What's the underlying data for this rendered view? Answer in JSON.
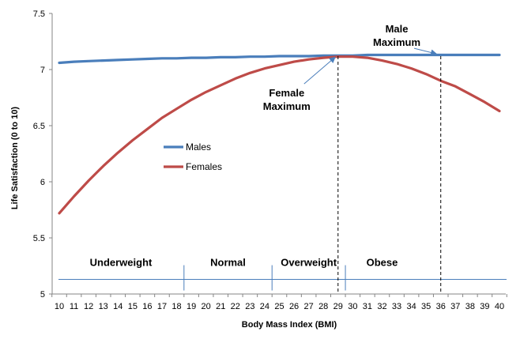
{
  "chart_data": {
    "type": "line",
    "xlabel": "Body Mass Index (BMI)",
    "ylabel": "Life Satisfaction  (0 to 10)",
    "x": [
      10,
      11,
      12,
      13,
      14,
      15,
      16,
      17,
      18,
      19,
      20,
      21,
      22,
      23,
      24,
      25,
      26,
      27,
      28,
      29,
      30,
      31,
      32,
      33,
      34,
      35,
      36,
      37,
      38,
      39,
      40
    ],
    "xlim": [
      10,
      40
    ],
    "ylim": [
      5,
      7.5
    ],
    "y_ticks": [
      5,
      5.5,
      6,
      6.5,
      7,
      7.5
    ],
    "grid": false,
    "legend_position": "middle-left",
    "series": [
      {
        "name": "Males",
        "color": "#4a7ebb",
        "values": [
          7.06,
          7.07,
          7.075,
          7.08,
          7.085,
          7.09,
          7.095,
          7.1,
          7.1,
          7.105,
          7.105,
          7.11,
          7.11,
          7.115,
          7.115,
          7.12,
          7.12,
          7.12,
          7.125,
          7.125,
          7.125,
          7.13,
          7.13,
          7.13,
          7.13,
          7.13,
          7.13,
          7.13,
          7.13,
          7.13,
          7.13
        ]
      },
      {
        "name": "Females",
        "color": "#be4b48",
        "values": [
          5.72,
          5.87,
          6.01,
          6.14,
          6.26,
          6.37,
          6.47,
          6.57,
          6.65,
          6.73,
          6.8,
          6.86,
          6.92,
          6.97,
          7.01,
          7.04,
          7.07,
          7.09,
          7.105,
          7.115,
          7.115,
          7.105,
          7.08,
          7.05,
          7.01,
          6.96,
          6.9,
          6.85,
          6.78,
          6.71,
          6.63
        ]
      }
    ],
    "categories_band": {
      "y": 5.13,
      "dividers": [
        18.5,
        24.5,
        29.5
      ],
      "labels": [
        {
          "text": "Underweight",
          "x": 14.2
        },
        {
          "text": "Normal",
          "x": 21.5
        },
        {
          "text": "Overweight",
          "x": 27
        },
        {
          "text": "Obese",
          "x": 32
        }
      ]
    },
    "annotations": [
      {
        "name": "female-max",
        "lines": [
          "Female",
          "Maximum"
        ],
        "text_x": 25.5,
        "text_y": 6.76,
        "arrow_to_x": 28.8,
        "arrow_to_y": 7.11,
        "vline_x": 29
      },
      {
        "name": "male-max",
        "lines": [
          "Male",
          "Maximum"
        ],
        "text_x": 33,
        "text_y": 7.33,
        "arrow_to_x": 35.7,
        "arrow_to_y": 7.14,
        "vline_x": 36
      }
    ]
  }
}
